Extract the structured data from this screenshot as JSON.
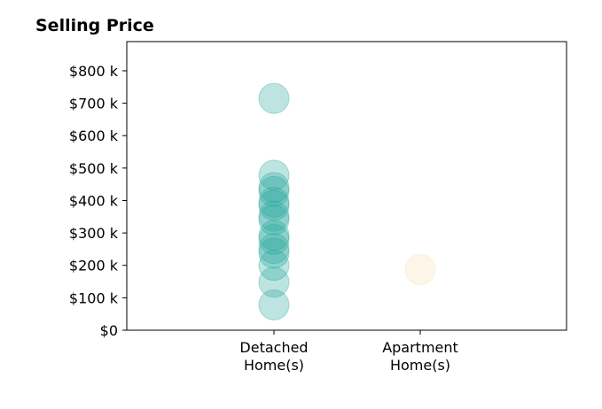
{
  "chart_data": {
    "type": "scatter",
    "title": "Selling Price",
    "categories": [
      "Detached\nHome(s)",
      "Apartment\nHome(s)"
    ],
    "ylim": [
      0,
      890000
    ],
    "yticks": [
      0,
      100000,
      200000,
      300000,
      400000,
      500000,
      600000,
      700000,
      800000
    ],
    "ytick_labels": [
      "$0",
      "$100 k",
      "$200 k",
      "$300 k",
      "$400 k",
      "$500 k",
      "$600 k",
      "$700 k",
      "$800 k"
    ],
    "grid": false,
    "series": [
      {
        "category": "Detached\nHome(s)",
        "color": "#26a69a",
        "values": [
          715000,
          478000,
          440000,
          428000,
          395000,
          385000,
          352000,
          340000,
          292000,
          280000,
          252000,
          238000,
          200000,
          148000,
          78000
        ]
      },
      {
        "category": "Apartment\nHome(s)",
        "color": "#f5deb3",
        "values": [
          187000
        ]
      }
    ]
  }
}
